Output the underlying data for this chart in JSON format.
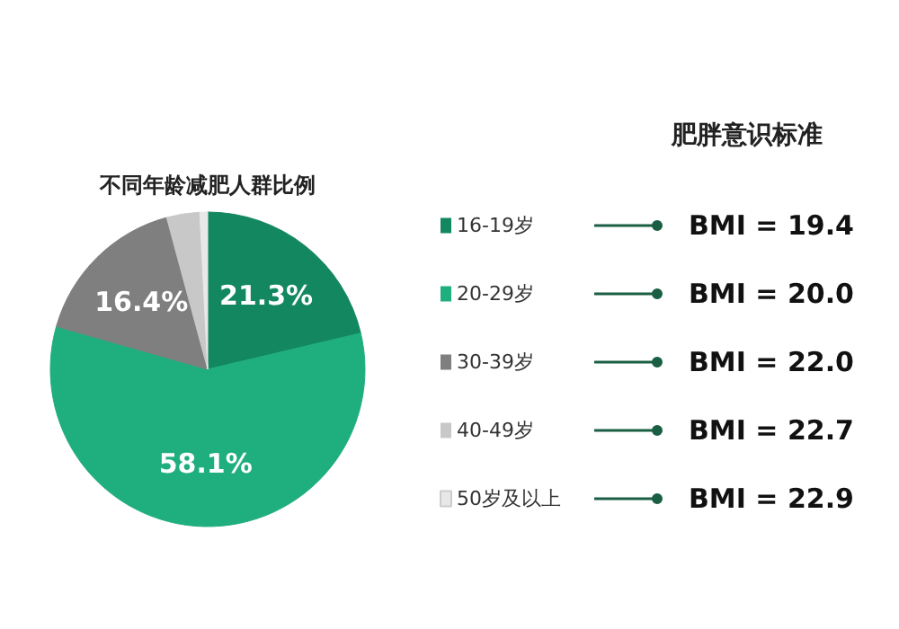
{
  "chart_data": {
    "type": "pie",
    "title": "不同年龄减肥人群比例",
    "categories": [
      "16-19岁",
      "20-29岁",
      "30-39岁",
      "40-49岁",
      "50岁及以上"
    ],
    "values": [
      21.3,
      58.1,
      16.4,
      3.4,
      0.8
    ],
    "colors": [
      "#13875f",
      "#1fae7e",
      "#7f7f7f",
      "#c8c8c8",
      "#e8e8e8"
    ],
    "value_labels": [
      "21.3%",
      "58.1%",
      "16.4%",
      null,
      null
    ],
    "legend": "right",
    "annotations": [
      "肥胖意识标准",
      "BMI = 19.4",
      "BMI = 20.0",
      "BMI = 22.0",
      "BMI = 22.7",
      "BMI = 22.9"
    ]
  }
}
